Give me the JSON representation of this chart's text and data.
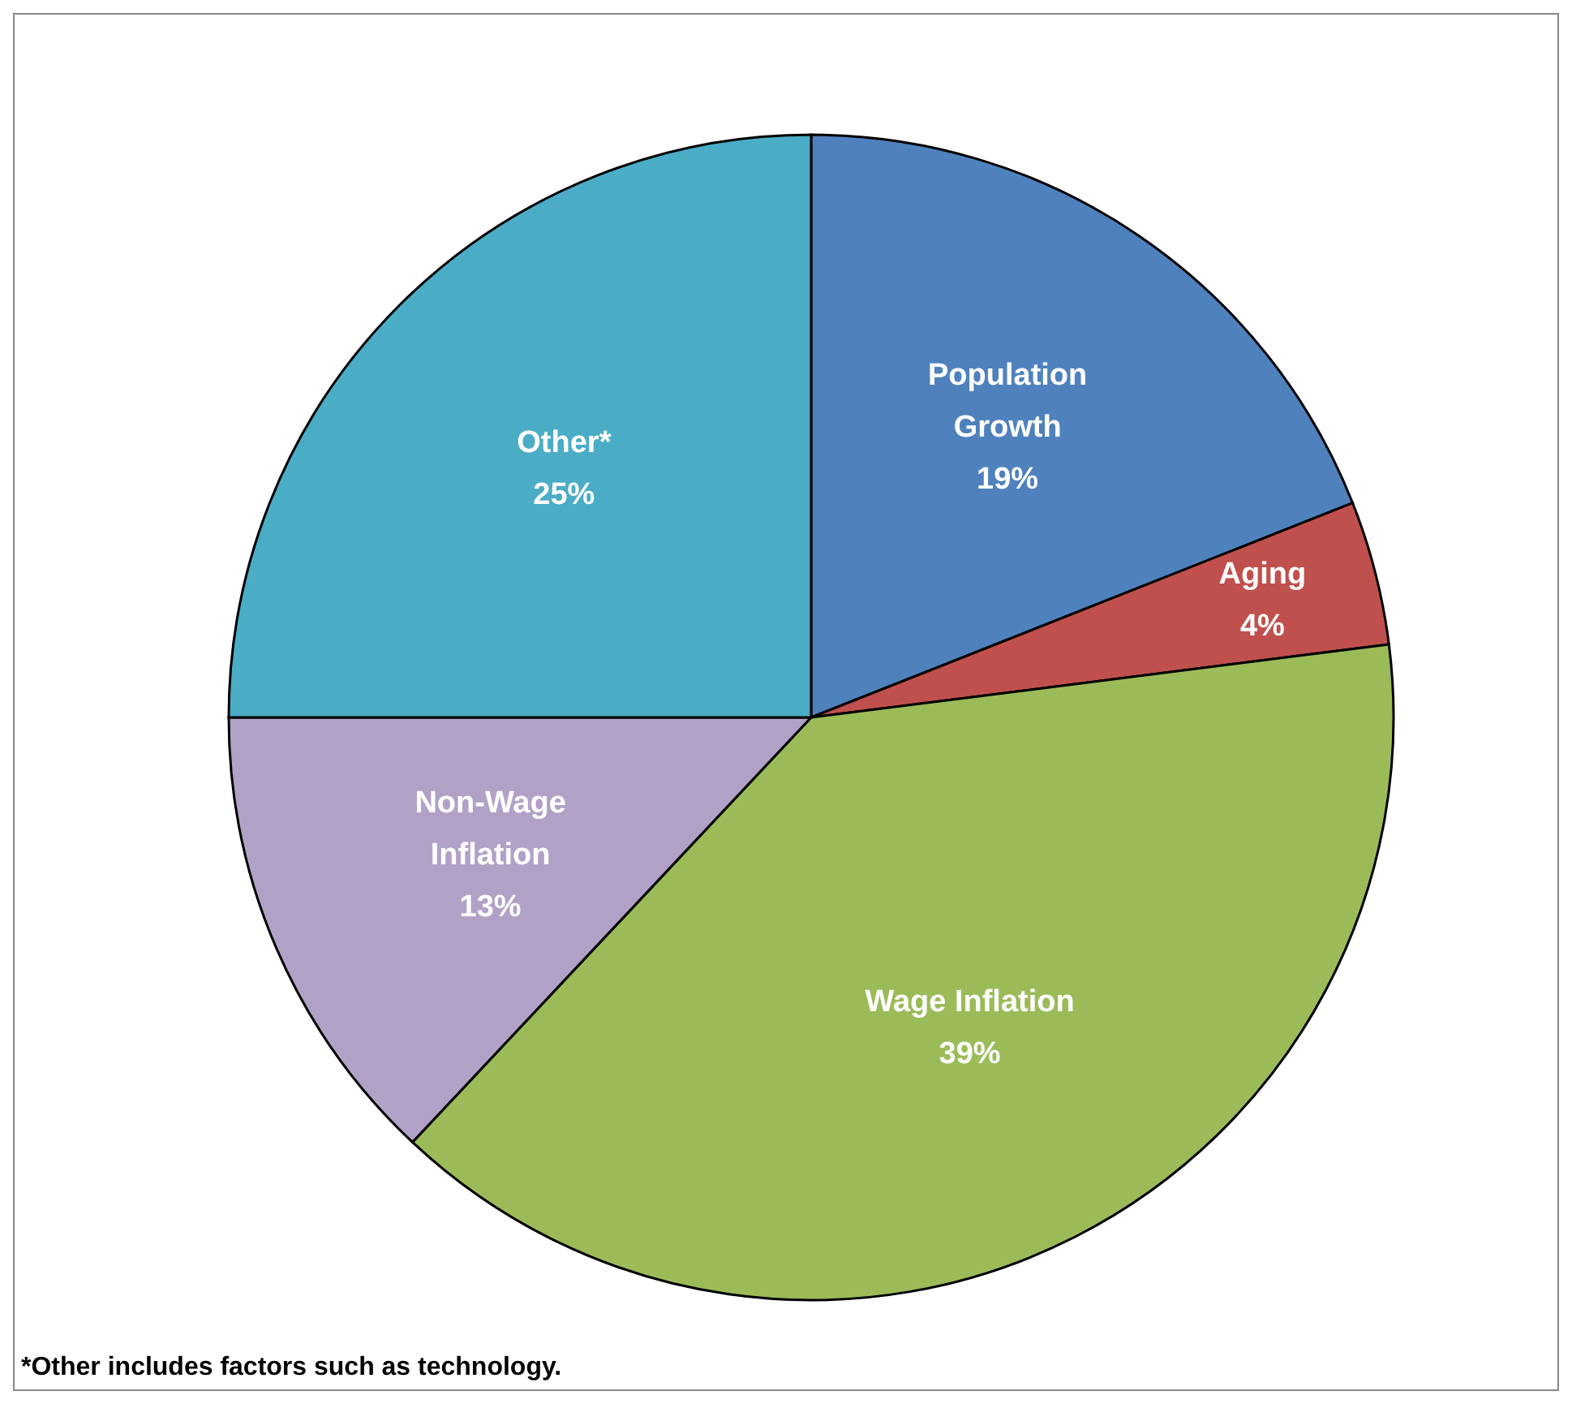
{
  "chart_data": {
    "type": "pie",
    "categories": [
      "Population Growth",
      "Aging",
      "Wage Inflation",
      "Non-Wage Inflation",
      "Other*"
    ],
    "values": [
      19,
      4,
      39,
      13,
      25
    ],
    "colors": [
      "#4f81bd",
      "#c0504d",
      "#9bbb59",
      "#b2a1c7",
      "#4bacc6"
    ],
    "value_labels": [
      "19%",
      "4%",
      "39%",
      "13%",
      "25%"
    ],
    "annotations": [
      "*Other includes factors such as technology."
    ],
    "legend": false
  }
}
